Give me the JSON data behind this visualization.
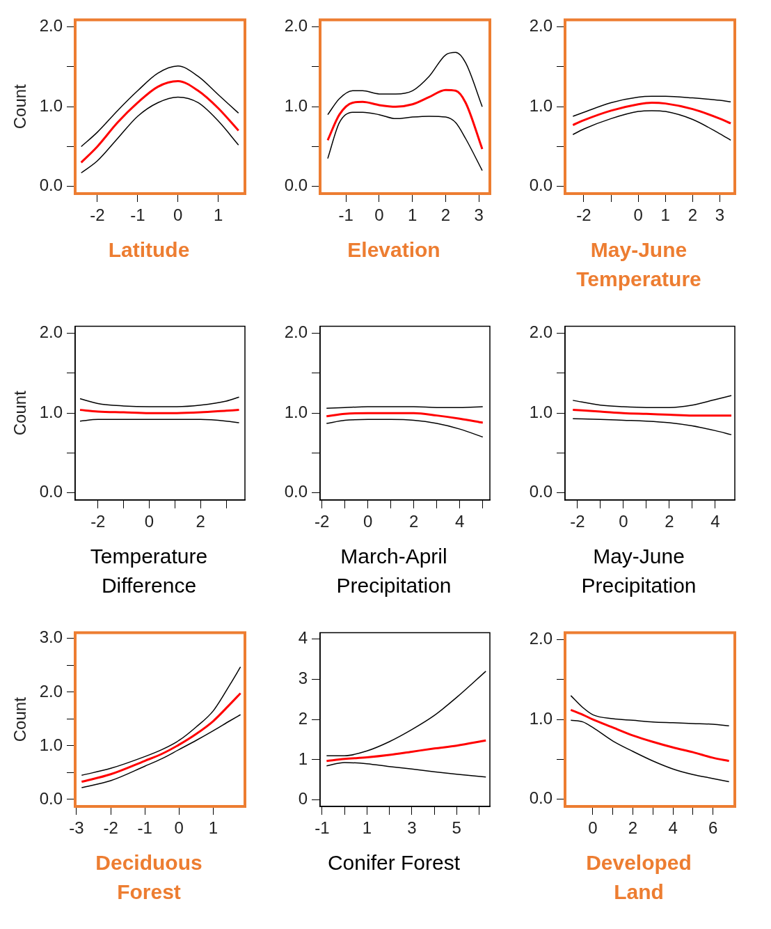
{
  "chart_data": [
    {
      "type": "line",
      "xlabel": "Latitude",
      "ylabel": "Count",
      "color": "#ed7d31",
      "x": [
        -2.4,
        -2,
        -1.5,
        -1,
        -0.5,
        0,
        0.5,
        1,
        1.5
      ],
      "xlim": [
        -2.55,
        1.66
      ],
      "xticks": [
        -2,
        -1,
        0,
        1
      ],
      "ylim": [
        -0.09,
        2.09
      ],
      "yticks": [
        {
          "value": 0,
          "label": "0.0"
        },
        {
          "value": 0.5,
          "label": null
        },
        {
          "value": 1,
          "label": "1.0"
        },
        {
          "value": 1.5,
          "label": null
        },
        {
          "value": 2,
          "label": "2.0"
        }
      ],
      "series": [
        {
          "color": "#000000",
          "values": [
            0.5,
            0.68,
            0.95,
            1.2,
            1.42,
            1.51,
            1.38,
            1.15,
            0.92
          ]
        },
        {
          "color": "#ff0000",
          "values": [
            0.3,
            0.5,
            0.8,
            1.05,
            1.25,
            1.32,
            1.2,
            0.98,
            0.7
          ]
        },
        {
          "color": "#000000",
          "values": [
            0.17,
            0.32,
            0.6,
            0.88,
            1.05,
            1.12,
            1.05,
            0.82,
            0.52
          ]
        }
      ]
    },
    {
      "type": "line",
      "xlabel": "Elevation",
      "color": "#ed7d31",
      "x": [
        -1.55,
        -1.2,
        -0.8,
        -0.5,
        0,
        0.5,
        1,
        1.5,
        2,
        2.3,
        2.6,
        3.1
      ],
      "xlim": [
        -1.78,
        3.33
      ],
      "xticks": [
        -1,
        0,
        1,
        2,
        3
      ],
      "ylim": [
        -0.09,
        2.09
      ],
      "yticks": [
        {
          "value": 0,
          "label": "0.0"
        },
        {
          "value": 0.5,
          "label": null
        },
        {
          "value": 1,
          "label": "1.0"
        },
        {
          "value": 1.5,
          "label": null
        },
        {
          "value": 2,
          "label": "2.0"
        }
      ],
      "series": [
        {
          "color": "#000000",
          "values": [
            0.9,
            1.1,
            1.2,
            1.2,
            1.16,
            1.16,
            1.2,
            1.38,
            1.65,
            1.68,
            1.55,
            1.0
          ]
        },
        {
          "color": "#ff0000",
          "values": [
            0.58,
            0.9,
            1.05,
            1.06,
            1.02,
            1.0,
            1.03,
            1.12,
            1.21,
            1.2,
            1.05,
            0.47
          ]
        },
        {
          "color": "#000000",
          "values": [
            0.35,
            0.8,
            0.93,
            0.93,
            0.9,
            0.85,
            0.87,
            0.88,
            0.87,
            0.8,
            0.6,
            0.2
          ]
        }
      ]
    },
    {
      "type": "line",
      "xlabel": "May-June Temperature",
      "color": "#ed7d31",
      "x": [
        -2.4,
        -2,
        -1,
        0,
        0.5,
        1,
        2,
        3,
        3.4
      ],
      "xlim": [
        -2.69,
        3.55
      ],
      "xticks": [
        -2,
        {
          "value": -1,
          "label": null
        },
        0,
        1,
        2,
        3
      ],
      "ylim": [
        -0.09,
        2.09
      ],
      "yticks": [
        {
          "value": 0,
          "label": "0.0"
        },
        {
          "value": 0.5,
          "label": null
        },
        {
          "value": 1,
          "label": "1.0"
        },
        {
          "value": 1.5,
          "label": null
        },
        {
          "value": 2,
          "label": "2.0"
        }
      ],
      "series": [
        {
          "color": "#000000",
          "values": [
            0.88,
            0.93,
            1.05,
            1.12,
            1.13,
            1.13,
            1.11,
            1.08,
            1.06
          ]
        },
        {
          "color": "#ff0000",
          "values": [
            0.77,
            0.83,
            0.95,
            1.03,
            1.05,
            1.04,
            0.97,
            0.85,
            0.79
          ]
        },
        {
          "color": "#000000",
          "values": [
            0.65,
            0.72,
            0.85,
            0.94,
            0.95,
            0.94,
            0.84,
            0.66,
            0.58
          ]
        }
      ]
    },
    {
      "type": "line",
      "xlabel": "Temperature Difference",
      "ylabel": "Count",
      "x": [
        -2.7,
        -2,
        -1,
        0,
        1,
        2,
        3,
        3.5
      ],
      "xlim": [
        -2.89,
        3.73
      ],
      "xticks": [
        -2,
        {
          "value": -1,
          "label": null
        },
        0,
        {
          "value": 1,
          "label": null
        },
        2,
        {
          "value": 3,
          "label": null
        }
      ],
      "ylim": [
        -0.09,
        2.09
      ],
      "yticks": [
        {
          "value": 0,
          "label": "0.0"
        },
        {
          "value": 0.5,
          "label": null
        },
        {
          "value": 1,
          "label": "1.0"
        },
        {
          "value": 1.5,
          "label": null
        },
        {
          "value": 2,
          "label": "2.0"
        }
      ],
      "series": [
        {
          "color": "#000000",
          "values": [
            1.18,
            1.12,
            1.09,
            1.08,
            1.08,
            1.1,
            1.15,
            1.2
          ]
        },
        {
          "color": "#ff0000",
          "values": [
            1.04,
            1.02,
            1.01,
            1.0,
            1.0,
            1.01,
            1.03,
            1.04
          ]
        },
        {
          "color": "#000000",
          "values": [
            0.9,
            0.92,
            0.92,
            0.92,
            0.92,
            0.92,
            0.9,
            0.88
          ]
        }
      ]
    },
    {
      "type": "line",
      "xlabel": "March-April Precipitation",
      "x": [
        -1.8,
        -1,
        0,
        1,
        2,
        3,
        4,
        5
      ],
      "xlim": [
        -2.08,
        5.31
      ],
      "xticks": [
        -2,
        {
          "value": -1,
          "label": null
        },
        0,
        {
          "value": 1,
          "label": null
        },
        2,
        {
          "value": 3,
          "label": null
        },
        4,
        {
          "value": 5,
          "label": null
        }
      ],
      "ylim": [
        -0.09,
        2.09
      ],
      "yticks": [
        {
          "value": 0,
          "label": "0.0"
        },
        {
          "value": 0.5,
          "label": null
        },
        {
          "value": 1,
          "label": "1.0"
        },
        {
          "value": 1.5,
          "label": null
        },
        {
          "value": 2,
          "label": "2.0"
        }
      ],
      "series": [
        {
          "color": "#000000",
          "values": [
            1.06,
            1.07,
            1.08,
            1.08,
            1.08,
            1.07,
            1.07,
            1.08
          ]
        },
        {
          "color": "#ff0000",
          "values": [
            0.96,
            0.99,
            1.0,
            1.0,
            1.0,
            0.97,
            0.93,
            0.88
          ]
        },
        {
          "color": "#000000",
          "values": [
            0.87,
            0.91,
            0.92,
            0.92,
            0.91,
            0.87,
            0.8,
            0.7
          ]
        }
      ]
    },
    {
      "type": "line",
      "xlabel": "May-June Precipitation",
      "x": [
        -2.2,
        -1,
        0,
        1,
        2,
        3,
        4,
        4.7
      ],
      "xlim": [
        -2.54,
        4.85
      ],
      "xticks": [
        -2,
        {
          "value": -1,
          "label": null
        },
        0,
        {
          "value": 1,
          "label": null
        },
        2,
        {
          "value": 3,
          "label": null
        },
        4
      ],
      "ylim": [
        -0.09,
        2.09
      ],
      "yticks": [
        {
          "value": 0,
          "label": "0.0"
        },
        {
          "value": 0.5,
          "label": null
        },
        {
          "value": 1,
          "label": "1.0"
        },
        {
          "value": 1.5,
          "label": null
        },
        {
          "value": 2,
          "label": "2.0"
        }
      ],
      "series": [
        {
          "color": "#000000",
          "values": [
            1.16,
            1.1,
            1.08,
            1.07,
            1.07,
            1.1,
            1.17,
            1.22
          ]
        },
        {
          "color": "#ff0000",
          "values": [
            1.04,
            1.02,
            1.0,
            0.99,
            0.98,
            0.97,
            0.97,
            0.97
          ]
        },
        {
          "color": "#000000",
          "values": [
            0.93,
            0.92,
            0.91,
            0.9,
            0.88,
            0.84,
            0.78,
            0.73
          ]
        }
      ]
    },
    {
      "type": "line",
      "xlabel": "Deciduous Forest",
      "ylabel": "Count",
      "color": "#ed7d31",
      "x": [
        -2.85,
        -2,
        -1,
        -0.5,
        0,
        0.5,
        1,
        1.5,
        1.8
      ],
      "xlim": [
        -3.04,
        1.93
      ],
      "xticks": [
        -3,
        -2,
        -1,
        0,
        1
      ],
      "ylim": [
        -0.13,
        3.11
      ],
      "yticks": [
        {
          "value": 0,
          "label": "0.0"
        },
        {
          "value": 0.5,
          "label": null
        },
        {
          "value": 1,
          "label": "1.0"
        },
        {
          "value": 1.5,
          "label": null
        },
        {
          "value": 2,
          "label": "2.0"
        },
        {
          "value": 2.5,
          "label": null
        },
        {
          "value": 3,
          "label": "3.0"
        }
      ],
      "series": [
        {
          "color": "#000000",
          "values": [
            0.45,
            0.58,
            0.8,
            0.93,
            1.1,
            1.35,
            1.65,
            2.15,
            2.47
          ]
        },
        {
          "color": "#ff0000",
          "values": [
            0.33,
            0.47,
            0.72,
            0.85,
            1.02,
            1.22,
            1.46,
            1.78,
            1.98
          ]
        },
        {
          "color": "#000000",
          "values": [
            0.22,
            0.35,
            0.62,
            0.76,
            0.93,
            1.1,
            1.28,
            1.47,
            1.58
          ]
        }
      ]
    },
    {
      "type": "line",
      "xlabel": "Conifer Forest",
      "x": [
        -0.8,
        0,
        1,
        2,
        3,
        4,
        5,
        6.3
      ],
      "xlim": [
        -1.09,
        6.48
      ],
      "xticks": [
        -1,
        {
          "value": 0,
          "label": null
        },
        1,
        {
          "value": 2,
          "label": null
        },
        3,
        {
          "value": 4,
          "label": null
        },
        5,
        {
          "value": 6,
          "label": null
        }
      ],
      "ylim": [
        -0.16,
        4.16
      ],
      "yticks": [
        0,
        1,
        2,
        3,
        4
      ],
      "series": [
        {
          "color": "#000000",
          "values": [
            1.1,
            1.1,
            1.22,
            1.45,
            1.75,
            2.1,
            2.55,
            3.2
          ]
        },
        {
          "color": "#ff0000",
          "values": [
            0.97,
            1.02,
            1.06,
            1.12,
            1.2,
            1.28,
            1.35,
            1.48
          ]
        },
        {
          "color": "#000000",
          "values": [
            0.85,
            0.93,
            0.9,
            0.83,
            0.77,
            0.7,
            0.64,
            0.57
          ]
        }
      ]
    },
    {
      "type": "line",
      "xlabel": "Developed Land",
      "color": "#ed7d31",
      "x": [
        -1.1,
        -0.5,
        0,
        1,
        2,
        3,
        4,
        5,
        6,
        6.8
      ],
      "xlim": [
        -1.39,
        7.09
      ],
      "xticks": [
        0,
        {
          "value": 1,
          "label": null
        },
        2,
        {
          "value": 3,
          "label": null
        },
        4,
        {
          "value": 5,
          "label": null
        },
        6
      ],
      "ylim": [
        -0.09,
        2.09
      ],
      "yticks": [
        {
          "value": 0,
          "label": "0.0"
        },
        {
          "value": 0.5,
          "label": null
        },
        {
          "value": 1,
          "label": "1.0"
        },
        {
          "value": 1.5,
          "label": null
        },
        {
          "value": 2,
          "label": "2.0"
        }
      ],
      "series": [
        {
          "color": "#000000",
          "values": [
            1.3,
            1.15,
            1.06,
            1.01,
            0.99,
            0.97,
            0.96,
            0.95,
            0.94,
            0.92
          ]
        },
        {
          "color": "#ff0000",
          "values": [
            1.12,
            1.06,
            1.0,
            0.9,
            0.8,
            0.72,
            0.65,
            0.59,
            0.52,
            0.48
          ]
        },
        {
          "color": "#000000",
          "values": [
            0.99,
            0.97,
            0.9,
            0.73,
            0.6,
            0.48,
            0.38,
            0.31,
            0.26,
            0.22
          ]
        }
      ]
    }
  ]
}
